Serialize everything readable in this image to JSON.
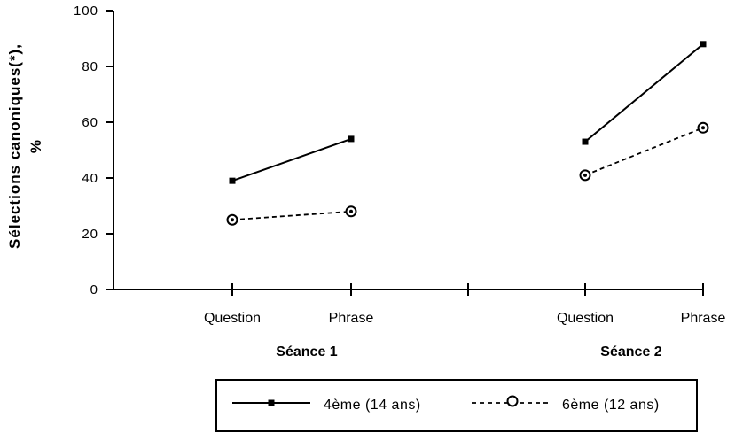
{
  "chart_data": {
    "type": "line",
    "ylabel_line1": "Sélections   canoniques(*),",
    "ylabel_line2": "%",
    "ylim": [
      0,
      100
    ],
    "yticks": [
      "100",
      "80",
      "60",
      "40",
      "20",
      "0"
    ],
    "groups": [
      {
        "label": "Séance 1",
        "categories": [
          "Question",
          "Phrase"
        ]
      },
      {
        "label": "Séance 2",
        "categories": [
          "Question",
          "Phrase"
        ]
      }
    ],
    "series": [
      {
        "name": "4ème (14 ans)",
        "style": "solid",
        "marker": "square",
        "values": [
          [
            39,
            54
          ],
          [
            53,
            88
          ]
        ]
      },
      {
        "name": "6ème (12 ans)",
        "style": "dashed",
        "marker": "circle",
        "values": [
          [
            25,
            28
          ],
          [
            41,
            58
          ]
        ]
      }
    ],
    "grid": false,
    "legend_position": "bottom"
  },
  "colors": {
    "ink": "#000000",
    "background": "#ffffff"
  }
}
